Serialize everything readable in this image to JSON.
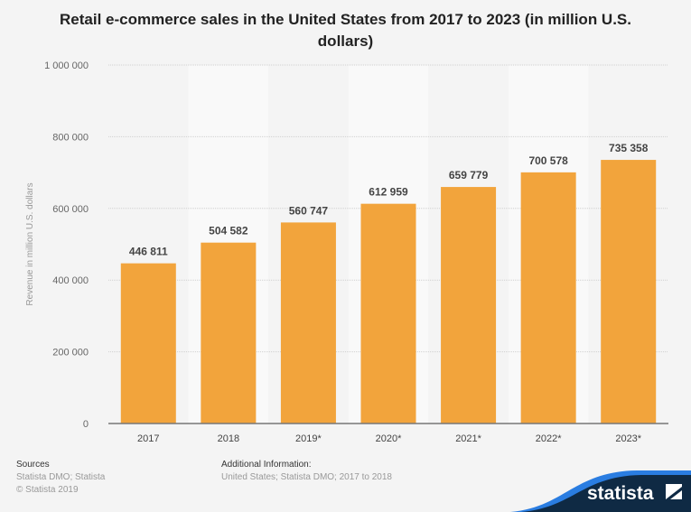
{
  "chart_data": {
    "type": "bar",
    "title": "Retail e-commerce sales in the United States from 2017 to 2023 (in million U.S. dollars)",
    "ylabel": "Revenue in million U.S. dollars",
    "xlabel": "",
    "categories": [
      "2017",
      "2018",
      "2019*",
      "2020*",
      "2021*",
      "2022*",
      "2023*"
    ],
    "values": [
      446811,
      504582,
      560747,
      612959,
      659779,
      700578,
      735358
    ],
    "data_labels": [
      "446 811",
      "504 582",
      "560 747",
      "612 959",
      "659 779",
      "700 578",
      "735 358"
    ],
    "ylim": [
      0,
      1000000
    ],
    "yticks": [
      0,
      200000,
      400000,
      600000,
      800000,
      1000000
    ],
    "ytick_labels": [
      "0",
      "200 000",
      "400 000",
      "600 000",
      "800 000",
      "1 000 000"
    ],
    "grid": true,
    "legend": "none",
    "bar_color": "#f2a43c"
  },
  "footer": {
    "sources_heading": "Sources",
    "sources_line1": "Statista DMO; Statista",
    "sources_line2": "© Statista 2019",
    "additional_heading": "Additional Information:",
    "additional_text": "United States; Statista DMO; 2017 to 2018",
    "logo_text": "statista"
  }
}
